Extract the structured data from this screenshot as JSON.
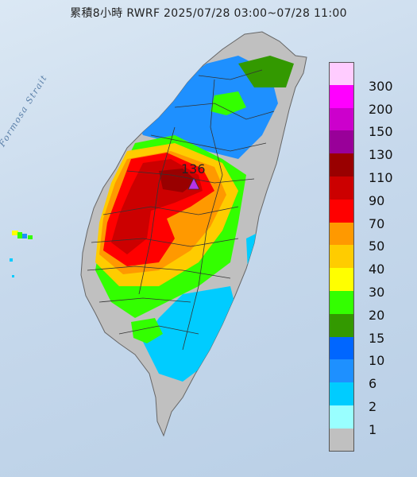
{
  "title": "累積8小時 RWRF 2025/07/28 03:00~07/28 11:00",
  "sea_label": "Formosa Strait",
  "peak": {
    "value": "136",
    "marker_color": "#b633e6"
  },
  "legend": [
    {
      "label": "300",
      "color": "#ffccff"
    },
    {
      "label": "200",
      "color": "#ff00ff"
    },
    {
      "label": "150",
      "color": "#cc00cc"
    },
    {
      "label": "130",
      "color": "#990099"
    },
    {
      "label": "110",
      "color": "#990000"
    },
    {
      "label": "90",
      "color": "#cc0000"
    },
    {
      "label": "70",
      "color": "#ff0000"
    },
    {
      "label": "50",
      "color": "#ff9900"
    },
    {
      "label": "40",
      "color": "#ffcc00"
    },
    {
      "label": "30",
      "color": "#ffff00"
    },
    {
      "label": "20",
      "color": "#33ff00"
    },
    {
      "label": "15",
      "color": "#339900"
    },
    {
      "label": "10",
      "color": "#0066ff"
    },
    {
      "label": "6",
      "color": "#1e90ff"
    },
    {
      "label": "2",
      "color": "#00ccff"
    },
    {
      "label": "1",
      "color": "#99ffff"
    },
    {
      "label": "",
      "color": "#c0c0c0"
    }
  ]
}
